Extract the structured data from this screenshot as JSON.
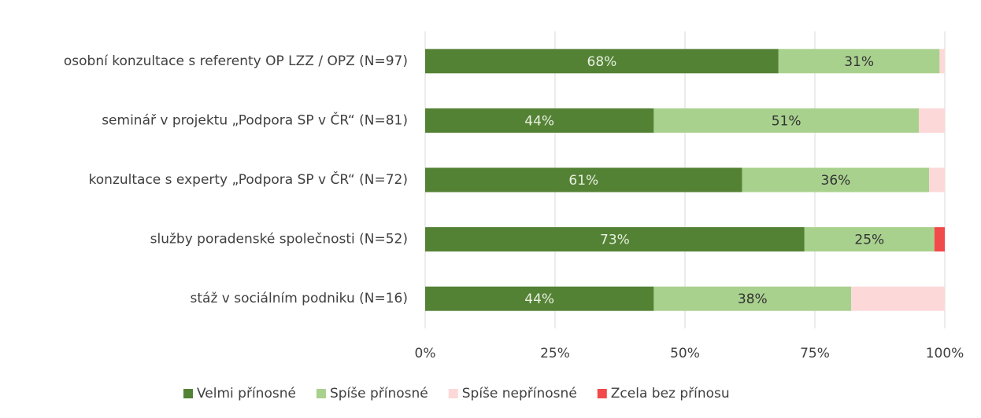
{
  "chart_data": {
    "type": "stacked-bar-horizontal",
    "categories": [
      "osobní konzultace s referenty OP LZZ / OPZ (N=97)",
      "seminář v projektu „Podpora SP v ČR“ (N=81)",
      "konzultace s experty „Podpora SP v ČR“ (N=72)",
      "služby poradenské společnosti (N=52)",
      "stáž v sociálním podniku (N=16)"
    ],
    "series": [
      {
        "name": "Velmi přínosné",
        "color": "#548235",
        "values": [
          68,
          44,
          61,
          73,
          44
        ],
        "value_labels": [
          "68%",
          "44%",
          "61%",
          "73%",
          "44%"
        ]
      },
      {
        "name": "Spíše přínosné",
        "color": "#a9d18e",
        "values": [
          31,
          51,
          36,
          25,
          38
        ],
        "value_labels": [
          "31%",
          "51%",
          "36%",
          "25%",
          "38%"
        ]
      },
      {
        "name": "Spíše nepřínosné",
        "color": "#fdd8d8",
        "values": [
          1,
          5,
          3,
          0,
          18
        ]
      },
      {
        "name": "Zcela bez přínosu",
        "color": "#f24a4a",
        "values": [
          0,
          0,
          0,
          2,
          0
        ]
      }
    ],
    "xlim": [
      0,
      100
    ],
    "xticks": [
      {
        "value": 0,
        "label": "0%"
      },
      {
        "value": 25,
        "label": "25%"
      },
      {
        "value": 50,
        "label": "50%"
      },
      {
        "value": 75,
        "label": "75%"
      },
      {
        "value": 100,
        "label": "100%"
      }
    ],
    "grid": true,
    "legend": "bottom"
  }
}
